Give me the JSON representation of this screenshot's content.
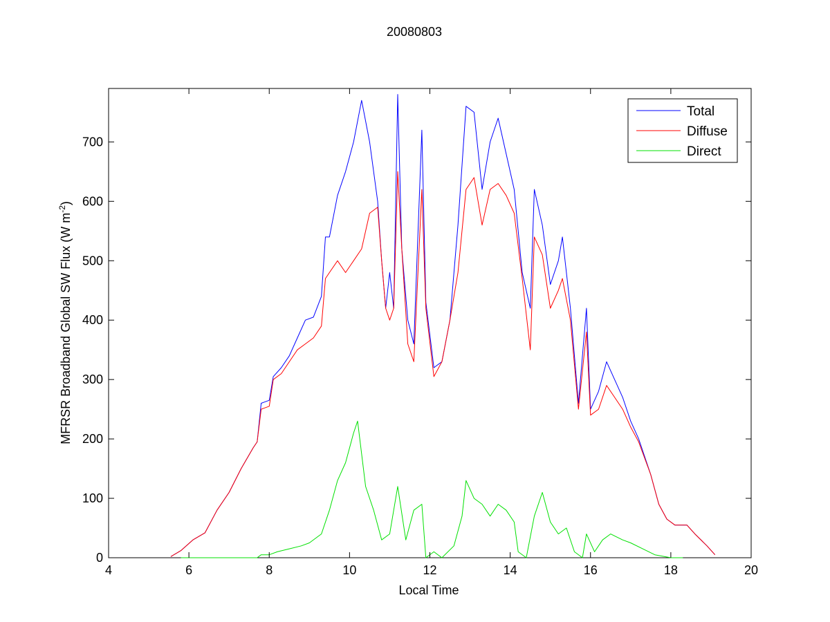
{
  "chart_data": {
    "type": "line",
    "title": "20080803",
    "xlabel": "Local Time",
    "ylabel": "MFRSR Broadband Global SW Flux (W m",
    "ylabel_sup": "-2",
    "ylabel_close": ")",
    "xlim": [
      4,
      20
    ],
    "ylim": [
      0,
      790
    ],
    "xticks": [
      4,
      6,
      8,
      10,
      12,
      14,
      16,
      18,
      20
    ],
    "yticks": [
      0,
      100,
      200,
      300,
      400,
      500,
      600,
      700
    ],
    "grid": false,
    "legend_position": "top-right",
    "series": [
      {
        "name": "Total",
        "color": "#0000ff",
        "points": [
          [
            5.55,
            2
          ],
          [
            5.8,
            12
          ],
          [
            6.1,
            30
          ],
          [
            6.4,
            42
          ],
          [
            6.7,
            80
          ],
          [
            7.0,
            110
          ],
          [
            7.3,
            150
          ],
          [
            7.6,
            185
          ],
          [
            7.7,
            195
          ],
          [
            7.8,
            260
          ],
          [
            8.0,
            265
          ],
          [
            8.1,
            305
          ],
          [
            8.3,
            320
          ],
          [
            8.5,
            340
          ],
          [
            8.7,
            370
          ],
          [
            8.9,
            400
          ],
          [
            9.1,
            405
          ],
          [
            9.3,
            440
          ],
          [
            9.4,
            540
          ],
          [
            9.5,
            540
          ],
          [
            9.7,
            610
          ],
          [
            9.9,
            650
          ],
          [
            10.1,
            700
          ],
          [
            10.3,
            770
          ],
          [
            10.5,
            700
          ],
          [
            10.7,
            600
          ],
          [
            10.8,
            500
          ],
          [
            10.9,
            420
          ],
          [
            11.0,
            480
          ],
          [
            11.1,
            420
          ],
          [
            11.2,
            780
          ],
          [
            11.3,
            520
          ],
          [
            11.45,
            400
          ],
          [
            11.6,
            360
          ],
          [
            11.8,
            720
          ],
          [
            11.9,
            430
          ],
          [
            12.1,
            320
          ],
          [
            12.3,
            330
          ],
          [
            12.5,
            400
          ],
          [
            12.7,
            560
          ],
          [
            12.9,
            760
          ],
          [
            13.1,
            750
          ],
          [
            13.3,
            620
          ],
          [
            13.5,
            700
          ],
          [
            13.7,
            740
          ],
          [
            13.9,
            680
          ],
          [
            14.1,
            620
          ],
          [
            14.3,
            480
          ],
          [
            14.5,
            420
          ],
          [
            14.6,
            620
          ],
          [
            14.8,
            560
          ],
          [
            15.0,
            460
          ],
          [
            15.2,
            500
          ],
          [
            15.3,
            540
          ],
          [
            15.5,
            420
          ],
          [
            15.7,
            260
          ],
          [
            15.9,
            420
          ],
          [
            16.0,
            250
          ],
          [
            16.2,
            280
          ],
          [
            16.4,
            330
          ],
          [
            16.6,
            300
          ],
          [
            16.8,
            270
          ],
          [
            17.0,
            230
          ],
          [
            17.2,
            200
          ],
          [
            17.5,
            140
          ],
          [
            17.7,
            90
          ],
          [
            17.9,
            65
          ],
          [
            18.1,
            55
          ],
          [
            18.4,
            55
          ],
          [
            18.6,
            40
          ],
          [
            18.9,
            20
          ],
          [
            19.1,
            5
          ]
        ]
      },
      {
        "name": "Diffuse",
        "color": "#ff0000",
        "points": [
          [
            5.55,
            2
          ],
          [
            5.8,
            12
          ],
          [
            6.1,
            30
          ],
          [
            6.4,
            42
          ],
          [
            6.7,
            80
          ],
          [
            7.0,
            110
          ],
          [
            7.3,
            150
          ],
          [
            7.6,
            185
          ],
          [
            7.7,
            195
          ],
          [
            7.8,
            250
          ],
          [
            8.0,
            255
          ],
          [
            8.1,
            300
          ],
          [
            8.3,
            310
          ],
          [
            8.5,
            330
          ],
          [
            8.7,
            350
          ],
          [
            8.9,
            360
          ],
          [
            9.1,
            370
          ],
          [
            9.3,
            390
          ],
          [
            9.4,
            470
          ],
          [
            9.5,
            480
          ],
          [
            9.7,
            500
          ],
          [
            9.9,
            480
          ],
          [
            10.1,
            500
          ],
          [
            10.3,
            520
          ],
          [
            10.5,
            580
          ],
          [
            10.7,
            590
          ],
          [
            10.8,
            500
          ],
          [
            10.9,
            420
          ],
          [
            11.0,
            400
          ],
          [
            11.1,
            420
          ],
          [
            11.2,
            650
          ],
          [
            11.3,
            520
          ],
          [
            11.45,
            360
          ],
          [
            11.6,
            330
          ],
          [
            11.8,
            620
          ],
          [
            11.9,
            420
          ],
          [
            12.1,
            305
          ],
          [
            12.3,
            330
          ],
          [
            12.5,
            400
          ],
          [
            12.7,
            480
          ],
          [
            12.9,
            620
          ],
          [
            13.1,
            640
          ],
          [
            13.3,
            560
          ],
          [
            13.5,
            620
          ],
          [
            13.7,
            630
          ],
          [
            13.9,
            610
          ],
          [
            14.1,
            580
          ],
          [
            14.3,
            470
          ],
          [
            14.5,
            350
          ],
          [
            14.6,
            540
          ],
          [
            14.8,
            510
          ],
          [
            15.0,
            420
          ],
          [
            15.2,
            450
          ],
          [
            15.3,
            470
          ],
          [
            15.5,
            400
          ],
          [
            15.7,
            250
          ],
          [
            15.9,
            380
          ],
          [
            16.0,
            240
          ],
          [
            16.2,
            250
          ],
          [
            16.4,
            290
          ],
          [
            16.6,
            270
          ],
          [
            16.8,
            250
          ],
          [
            17.0,
            220
          ],
          [
            17.2,
            195
          ],
          [
            17.5,
            140
          ],
          [
            17.7,
            90
          ],
          [
            17.9,
            65
          ],
          [
            18.1,
            55
          ],
          [
            18.4,
            55
          ],
          [
            18.6,
            40
          ],
          [
            18.9,
            20
          ],
          [
            19.1,
            5
          ]
        ]
      },
      {
        "name": "Direct",
        "color": "#00e000",
        "points": [
          [
            5.8,
            0
          ],
          [
            7.7,
            0
          ],
          [
            7.8,
            5
          ],
          [
            8.0,
            5
          ],
          [
            8.2,
            10
          ],
          [
            8.5,
            15
          ],
          [
            8.8,
            20
          ],
          [
            9.0,
            25
          ],
          [
            9.2,
            35
          ],
          [
            9.3,
            40
          ],
          [
            9.5,
            80
          ],
          [
            9.7,
            130
          ],
          [
            9.9,
            160
          ],
          [
            10.1,
            210
          ],
          [
            10.2,
            230
          ],
          [
            10.4,
            120
          ],
          [
            10.6,
            80
          ],
          [
            10.8,
            30
          ],
          [
            11.0,
            40
          ],
          [
            11.2,
            120
          ],
          [
            11.4,
            30
          ],
          [
            11.6,
            80
          ],
          [
            11.8,
            90
          ],
          [
            11.9,
            0
          ],
          [
            12.1,
            10
          ],
          [
            12.3,
            0
          ],
          [
            12.6,
            20
          ],
          [
            12.8,
            70
          ],
          [
            12.9,
            130
          ],
          [
            13.1,
            100
          ],
          [
            13.3,
            90
          ],
          [
            13.5,
            70
          ],
          [
            13.7,
            90
          ],
          [
            13.9,
            80
          ],
          [
            14.1,
            60
          ],
          [
            14.2,
            10
          ],
          [
            14.4,
            0
          ],
          [
            14.6,
            70
          ],
          [
            14.8,
            110
          ],
          [
            15.0,
            60
          ],
          [
            15.2,
            40
          ],
          [
            15.4,
            50
          ],
          [
            15.6,
            10
          ],
          [
            15.8,
            0
          ],
          [
            15.9,
            40
          ],
          [
            16.1,
            10
          ],
          [
            16.3,
            30
          ],
          [
            16.5,
            40
          ],
          [
            16.8,
            30
          ],
          [
            17.0,
            25
          ],
          [
            17.3,
            15
          ],
          [
            17.6,
            5
          ],
          [
            18.0,
            0
          ],
          [
            18.3,
            0
          ]
        ]
      }
    ]
  }
}
